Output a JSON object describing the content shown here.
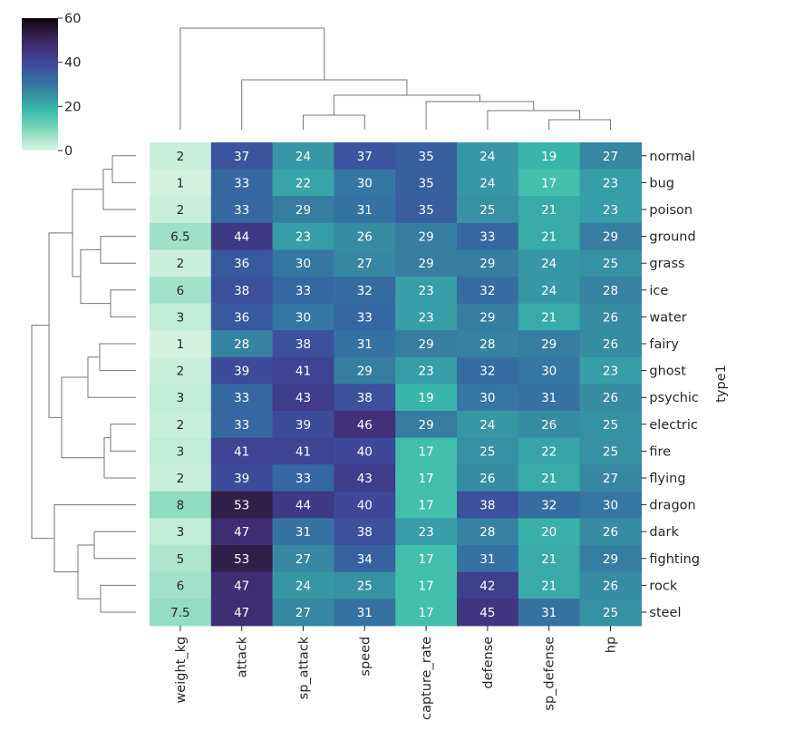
{
  "chart_data": {
    "type": "heatmap",
    "title": "",
    "xlabel": "",
    "ylabel": "type1",
    "columns": [
      "weight_kg",
      "attack",
      "sp_attack",
      "speed",
      "capture_rate",
      "defense",
      "sp_defense",
      "hp"
    ],
    "rows": [
      "normal",
      "bug",
      "poison",
      "ground",
      "grass",
      "ice",
      "water",
      "fairy",
      "ghost",
      "psychic",
      "electric",
      "fire",
      "flying",
      "dragon",
      "dark",
      "fighting",
      "rock",
      "steel"
    ],
    "values": [
      [
        "2",
        "37",
        "24",
        "37",
        "35",
        "24",
        "19",
        "27"
      ],
      [
        "1",
        "33",
        "22",
        "30",
        "35",
        "24",
        "17",
        "23"
      ],
      [
        "2",
        "33",
        "29",
        "31",
        "35",
        "25",
        "21",
        "23"
      ],
      [
        "6.5",
        "44",
        "23",
        "26",
        "29",
        "33",
        "21",
        "29"
      ],
      [
        "2",
        "36",
        "30",
        "27",
        "29",
        "29",
        "24",
        "25"
      ],
      [
        "6",
        "38",
        "33",
        "32",
        "23",
        "32",
        "24",
        "28"
      ],
      [
        "3",
        "36",
        "30",
        "33",
        "23",
        "29",
        "21",
        "26"
      ],
      [
        "1",
        "28",
        "38",
        "31",
        "29",
        "28",
        "29",
        "26"
      ],
      [
        "2",
        "39",
        "41",
        "29",
        "23",
        "32",
        "30",
        "23"
      ],
      [
        "3",
        "33",
        "43",
        "38",
        "19",
        "30",
        "31",
        "26"
      ],
      [
        "2",
        "33",
        "39",
        "46",
        "29",
        "24",
        "26",
        "25"
      ],
      [
        "3",
        "41",
        "41",
        "40",
        "17",
        "25",
        "22",
        "25"
      ],
      [
        "2",
        "39",
        "33",
        "43",
        "17",
        "26",
        "21",
        "27"
      ],
      [
        "8",
        "53",
        "44",
        "40",
        "17",
        "38",
        "32",
        "30"
      ],
      [
        "3",
        "47",
        "31",
        "38",
        "23",
        "28",
        "20",
        "26"
      ],
      [
        "5",
        "53",
        "27",
        "34",
        "17",
        "31",
        "21",
        "29"
      ],
      [
        "6",
        "47",
        "24",
        "25",
        "17",
        "42",
        "21",
        "26"
      ],
      [
        "7.5",
        "47",
        "27",
        "31",
        "17",
        "45",
        "31",
        "25"
      ]
    ],
    "colorbar": {
      "min": 0,
      "max": 60,
      "ticks": [
        "0",
        "20",
        "40",
        "60"
      ],
      "colormap": "mako_r"
    }
  }
}
